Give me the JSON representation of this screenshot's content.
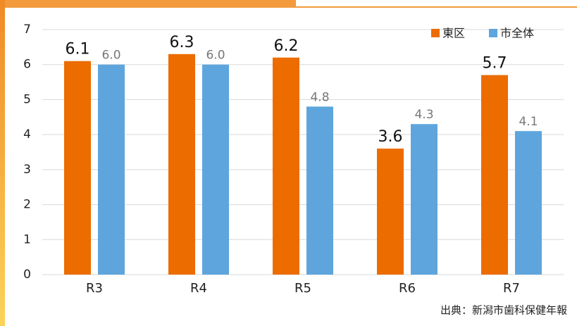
{
  "chart_data": {
    "type": "bar",
    "categories": [
      "R3",
      "R4",
      "R5",
      "R6",
      "R7"
    ],
    "series": [
      {
        "name": "東区",
        "color": "#ec6c00",
        "values": [
          6.1,
          6.3,
          6.2,
          3.6,
          5.7
        ],
        "value_labels": [
          "6.1",
          "6.3",
          "6.2",
          "3.6",
          "5.7"
        ]
      },
      {
        "name": "市全体",
        "color": "#5ea5dd",
        "values": [
          6.0,
          6.0,
          4.8,
          4.3,
          4.1
        ],
        "value_labels": [
          "6.0",
          "6.0",
          "4.8",
          "4.3",
          "4.1"
        ]
      }
    ],
    "ylim": [
      0,
      7
    ],
    "yticks": [
      0,
      1,
      2,
      3,
      4,
      5,
      6,
      7
    ],
    "grid": true,
    "legend": "top-right",
    "source": "出典：新潟市歯科保健年報"
  }
}
